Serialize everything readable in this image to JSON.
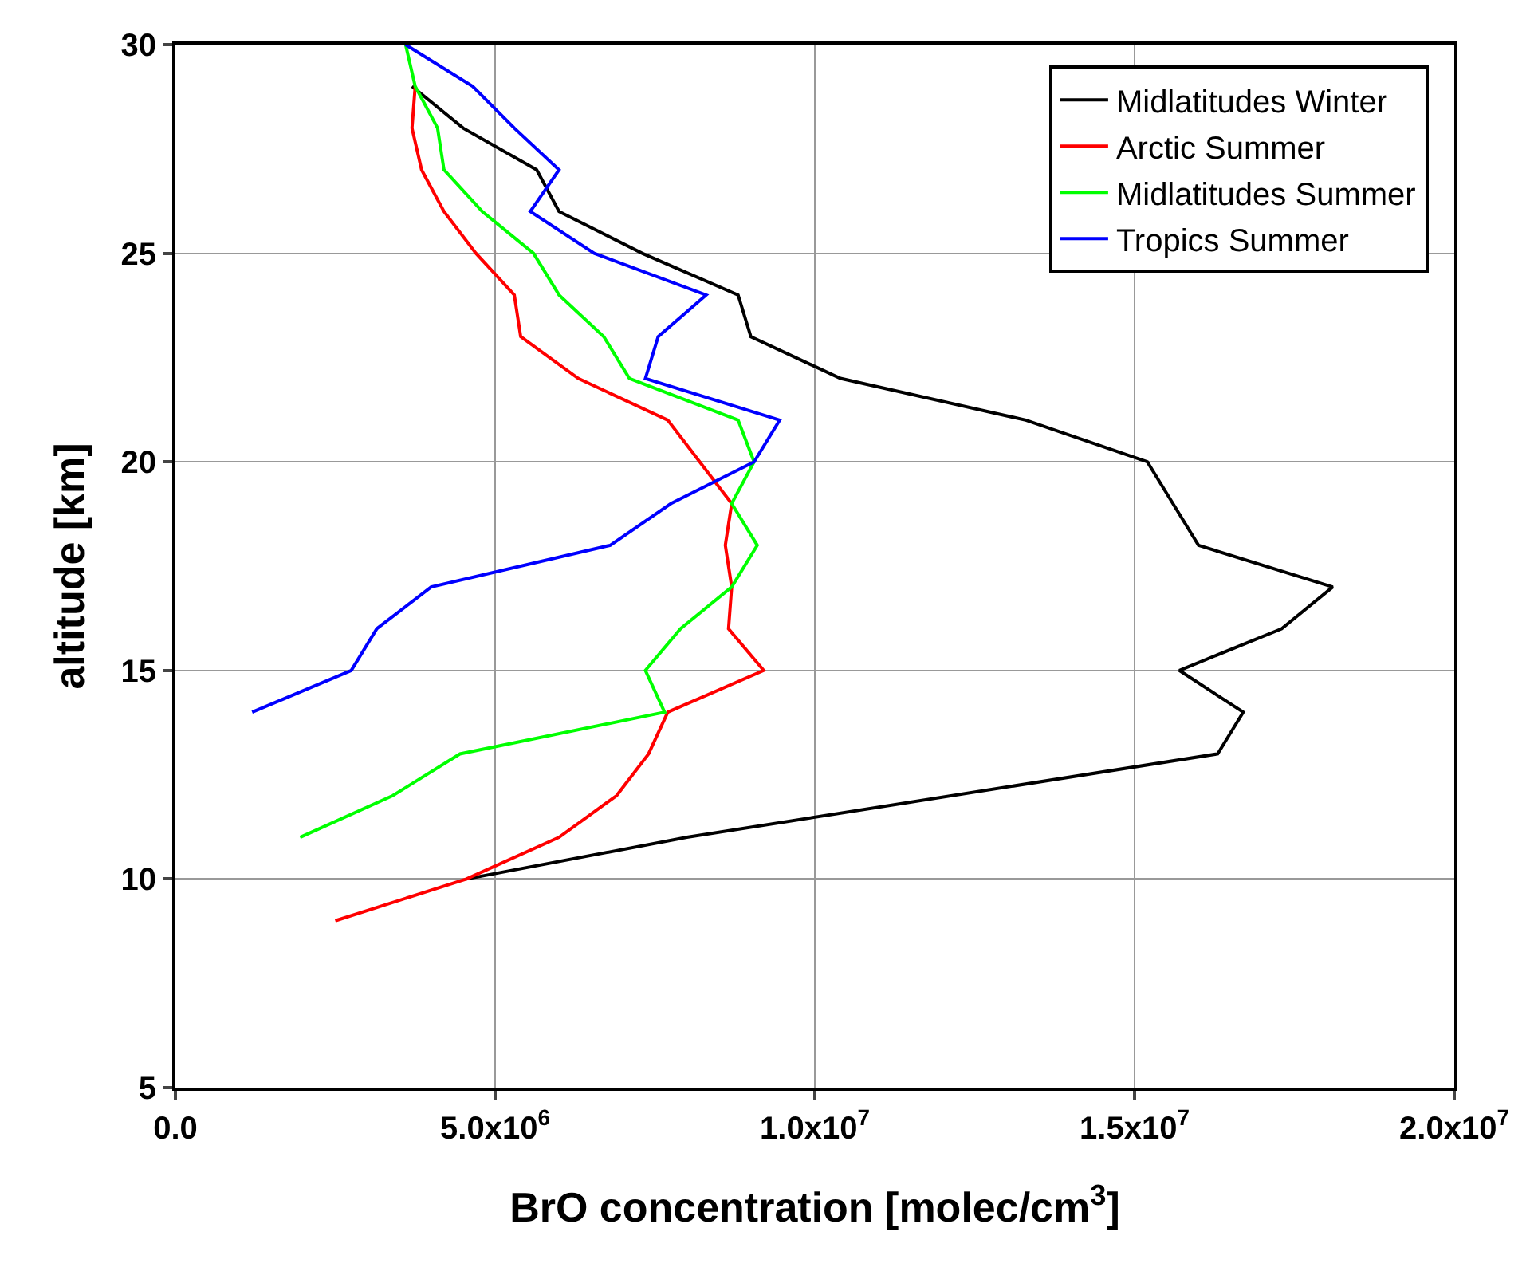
{
  "chart_data": {
    "type": "line",
    "xlabel": "BrO concentration [molec/cm$^{3}$]",
    "ylabel": "altitude [km]",
    "xlim": [
      0,
      20000000
    ],
    "ylim": [
      5,
      30
    ],
    "xticks": [
      {
        "value": 0,
        "label": "0.0"
      },
      {
        "value": 5000000,
        "label": "5.0x10$^{6}$"
      },
      {
        "value": 10000000,
        "label": "1.0x10$^{7}$"
      },
      {
        "value": 15000000,
        "label": "1.5x10$^{7}$"
      },
      {
        "value": 20000000,
        "label": "2.0x10$^{7}$"
      }
    ],
    "yticks": [
      5,
      10,
      15,
      20,
      25,
      30
    ],
    "grid": true,
    "legend": "top right",
    "marker": "none",
    "line_style": "solid",
    "series": [
      {
        "name": "Midlatitudes Winter",
        "color": "#000000",
        "values": [
          29,
          28,
          27,
          26,
          25,
          24,
          23,
          22,
          21,
          20,
          19,
          18,
          17,
          16,
          15,
          14,
          13,
          11,
          10
        ],
        "x": [
          3700000,
          4500000,
          5650000,
          6000000,
          7300000,
          8800000,
          9000000,
          10400000,
          13300000,
          15200000,
          15600000,
          16000000,
          18100000,
          17300000,
          15700000,
          16700000,
          16300000,
          8000000,
          4550000
        ]
      },
      {
        "name": "Arctic Summer",
        "color": "#ff0000",
        "values": [
          29,
          28,
          27,
          26,
          25,
          24,
          23,
          22,
          21,
          20,
          19,
          18,
          17,
          16,
          15,
          14,
          13,
          12,
          11,
          10,
          9
        ],
        "x": [
          3750000,
          3700000,
          3850000,
          4200000,
          4700000,
          5300000,
          5400000,
          6300000,
          7700000,
          8200000,
          8700000,
          8600000,
          8700000,
          8650000,
          9200000,
          7700000,
          7400000,
          6900000,
          6000000,
          4550000,
          2500000
        ]
      },
      {
        "name": "Midlatitudes Summer",
        "color": "#00ff00",
        "values": [
          30,
          29,
          28,
          27,
          26,
          25,
          24,
          23,
          22,
          21,
          20,
          19,
          18,
          17,
          16,
          15,
          14,
          13,
          12,
          11
        ],
        "x": [
          3600000,
          3750000,
          4100000,
          4200000,
          4800000,
          5600000,
          6000000,
          6700000,
          7100000,
          8800000,
          9050000,
          8700000,
          9100000,
          8700000,
          7900000,
          7350000,
          7650000,
          4450000,
          3400000,
          1950000
        ]
      },
      {
        "name": "Tropics Summer",
        "color": "#0000ff",
        "values": [
          30,
          29,
          28,
          27,
          26,
          25,
          24,
          23,
          22,
          21,
          20,
          19,
          18,
          17,
          16,
          15,
          14
        ],
        "x": [
          3600000,
          4650000,
          5300000,
          6000000,
          5550000,
          6550000,
          8300000,
          7550000,
          7350000,
          9450000,
          9050000,
          7750000,
          6800000,
          4000000,
          3150000,
          2750000,
          1200000
        ]
      }
    ]
  }
}
